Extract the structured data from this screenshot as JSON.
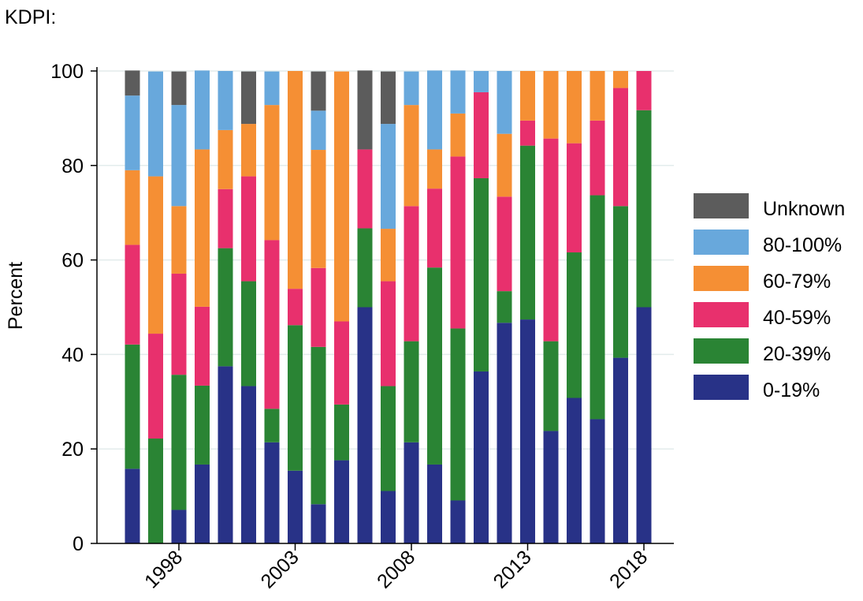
{
  "heading": "KDPI:",
  "chart_data": {
    "type": "bar",
    "stacked": true,
    "percent_stacked": true,
    "categories": [
      1996,
      1997,
      1998,
      1999,
      2000,
      2001,
      2002,
      2003,
      2004,
      2005,
      2006,
      2007,
      2008,
      2009,
      2010,
      2011,
      2012,
      2013,
      2014,
      2015,
      2016,
      2017,
      2018
    ],
    "x_tick_labels": [
      "1998",
      "2003",
      "2008",
      "2013",
      "2018"
    ],
    "ylabel": "Percent",
    "xlabel": "",
    "ylim": [
      0,
      100
    ],
    "yticks": [
      0,
      20,
      40,
      60,
      80,
      100
    ],
    "grid": "horizontal",
    "legend_position": "right",
    "series": [
      {
        "name": "0-19%",
        "color": "#283287",
        "values": [
          15.8,
          0,
          7.1,
          16.7,
          37.5,
          33.3,
          21.4,
          15.4,
          8.3,
          17.6,
          50,
          11.1,
          21.4,
          16.7,
          9.1,
          36.4,
          46.7,
          47.4,
          23.8,
          30.8,
          26.3,
          39.3,
          50
        ]
      },
      {
        "name": "20-39%",
        "color": "#2a8434",
        "values": [
          26.3,
          22.2,
          28.6,
          16.7,
          25,
          22.2,
          7.1,
          30.8,
          33.3,
          11.8,
          16.7,
          22.2,
          21.4,
          41.7,
          36.4,
          40.9,
          6.7,
          36.8,
          19,
          30.8,
          47.4,
          32.1,
          41.7
        ]
      },
      {
        "name": "40-59%",
        "color": "#e8306d",
        "values": [
          21.1,
          22.2,
          21.4,
          16.7,
          12.5,
          22.2,
          35.7,
          7.7,
          16.7,
          17.6,
          16.7,
          22.2,
          28.6,
          16.7,
          36.4,
          18.2,
          20,
          5.3,
          42.9,
          23.1,
          15.8,
          25,
          8.3
        ]
      },
      {
        "name": "60-79%",
        "color": "#f58f34",
        "values": [
          15.8,
          33.3,
          14.3,
          33.3,
          12.5,
          11.1,
          28.6,
          46.1,
          25,
          52.9,
          0,
          11.1,
          21.4,
          8.3,
          9.1,
          0,
          13.3,
          10.5,
          14.3,
          15.3,
          10.5,
          3.6,
          0
        ]
      },
      {
        "name": "80-100%",
        "color": "#68a8dc",
        "values": [
          15.8,
          22.2,
          21.4,
          16.7,
          12.5,
          0,
          7.1,
          0,
          8.3,
          0,
          0,
          22.2,
          7.1,
          16.7,
          9.1,
          4.5,
          13.3,
          0,
          0,
          0,
          0,
          0,
          0
        ]
      },
      {
        "name": "Unknown",
        "color": "#5c5c5c",
        "values": [
          5.3,
          0,
          7.1,
          0,
          0,
          11.1,
          0,
          0,
          8.3,
          0,
          16.7,
          11.1,
          0,
          0,
          0,
          0,
          0,
          0,
          0,
          0,
          0,
          0,
          0
        ]
      }
    ],
    "legend_order": [
      "Unknown",
      "80-100%",
      "60-79%",
      "40-59%",
      "20-39%",
      "0-19%"
    ]
  }
}
